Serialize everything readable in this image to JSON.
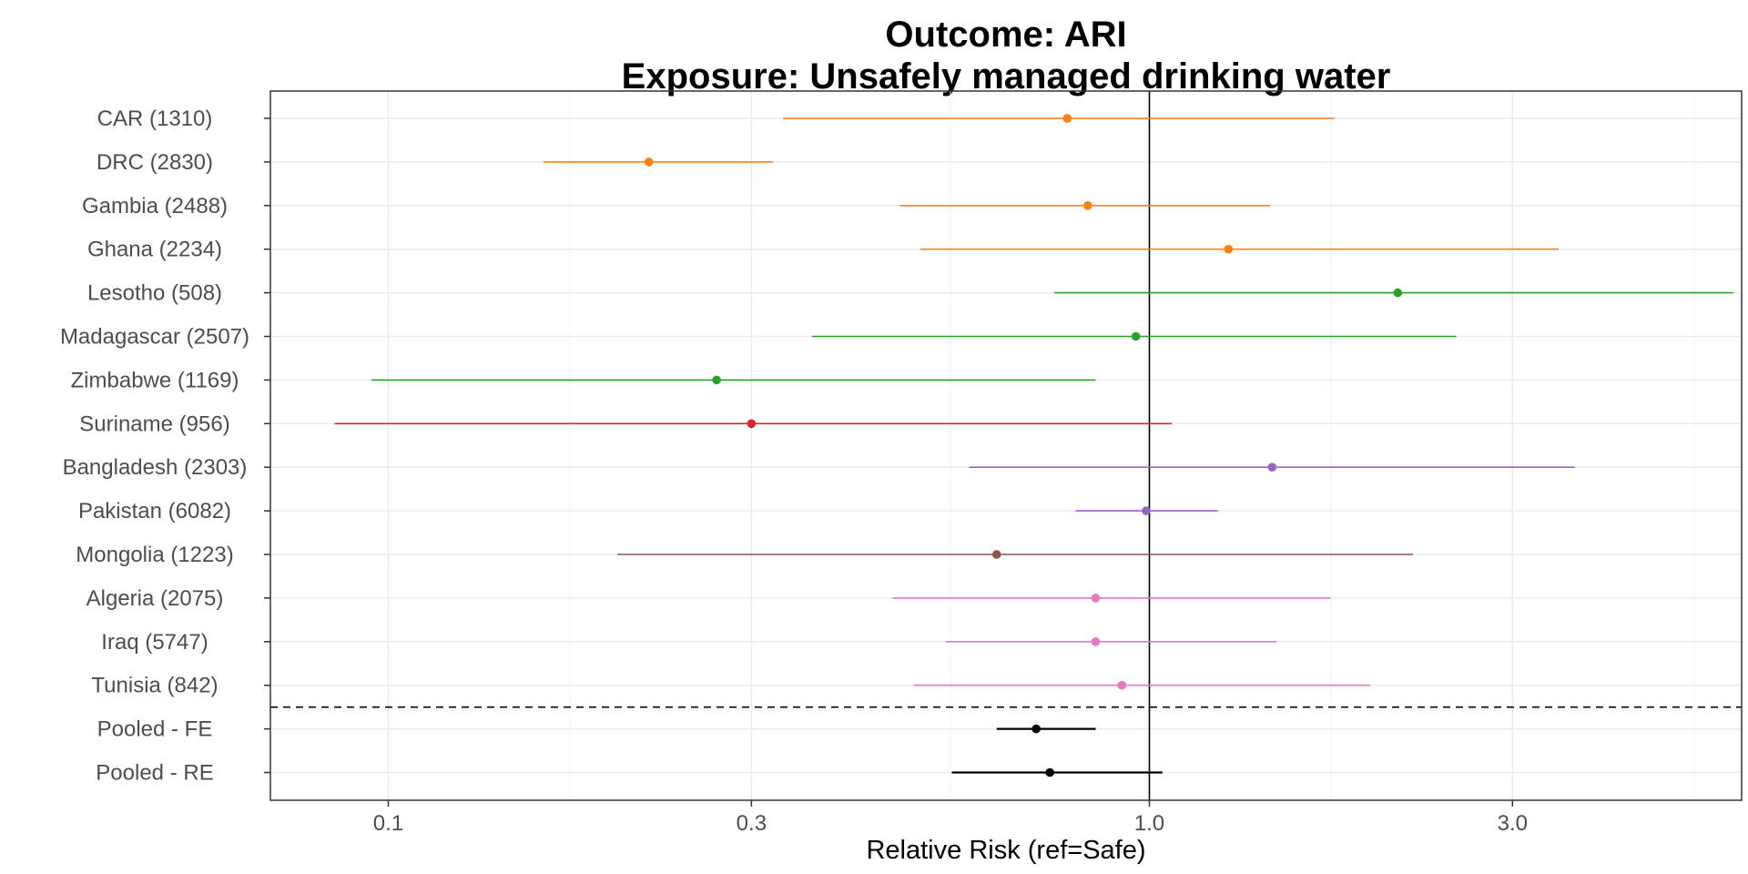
{
  "chart_data": {
    "type": "forest",
    "title_line1": "Outcome: ARI",
    "title_line2": "Exposure: Unsafely managed drinking water",
    "xlabel": "Relative Risk (ref=Safe)",
    "x_scale": "log",
    "xlim": [
      0.07,
      6.0
    ],
    "x_ticks": [
      {
        "value": 0.1,
        "label": "0.1"
      },
      {
        "value": 0.3,
        "label": "0.3"
      },
      {
        "value": 1.0,
        "label": "1.0"
      },
      {
        "value": 3.0,
        "label": "3.0"
      }
    ],
    "reference_line": 1.0,
    "grid": true,
    "rows": [
      {
        "label": "CAR (1310)",
        "rr": 0.78,
        "lower": 0.33,
        "upper": 1.75,
        "color": "#ff7f0e"
      },
      {
        "label": "DRC (2830)",
        "rr": 0.22,
        "lower": 0.16,
        "upper": 0.32,
        "color": "#ff7f0e"
      },
      {
        "label": "Gambia (2488)",
        "rr": 0.83,
        "lower": 0.47,
        "upper": 1.44,
        "color": "#ff7f0e"
      },
      {
        "label": "Ghana (2234)",
        "rr": 1.27,
        "lower": 0.5,
        "upper": 3.45,
        "color": "#ff7f0e"
      },
      {
        "label": "Lesotho (508)",
        "rr": 2.12,
        "lower": 0.75,
        "upper": 5.85,
        "color": "#2ca02c"
      },
      {
        "label": "Madagascar (2507)",
        "rr": 0.96,
        "lower": 0.36,
        "upper": 2.53,
        "color": "#2ca02c"
      },
      {
        "label": "Zimbabwe (1169)",
        "rr": 0.27,
        "lower": 0.095,
        "upper": 0.85,
        "color": "#2ca02c"
      },
      {
        "label": "Suriname (956)",
        "rr": 0.3,
        "lower": 0.085,
        "upper": 1.07,
        "color": "#d62728"
      },
      {
        "label": "Bangladesh (2303)",
        "rr": 1.45,
        "lower": 0.58,
        "upper": 3.62,
        "color": "#9467bd"
      },
      {
        "label": "Pakistan (6082)",
        "rr": 0.99,
        "lower": 0.8,
        "upper": 1.23,
        "color": "#9467bd"
      },
      {
        "label": "Mongolia (1223)",
        "rr": 0.63,
        "lower": 0.2,
        "upper": 2.22,
        "color": "#8c564b"
      },
      {
        "label": "Algeria (2075)",
        "rr": 0.85,
        "lower": 0.46,
        "upper": 1.73,
        "color": "#e377c2"
      },
      {
        "label": "Iraq (5747)",
        "rr": 0.85,
        "lower": 0.54,
        "upper": 1.47,
        "color": "#e377c2"
      },
      {
        "label": "Tunisia (842)",
        "rr": 0.92,
        "lower": 0.49,
        "upper": 1.95,
        "color": "#e377c2"
      },
      {
        "label": "Pooled - FE",
        "rr": 0.71,
        "lower": 0.63,
        "upper": 0.85,
        "color": "#000000"
      },
      {
        "label": "Pooled - RE",
        "rr": 0.74,
        "lower": 0.55,
        "upper": 1.04,
        "color": "#000000"
      }
    ]
  }
}
